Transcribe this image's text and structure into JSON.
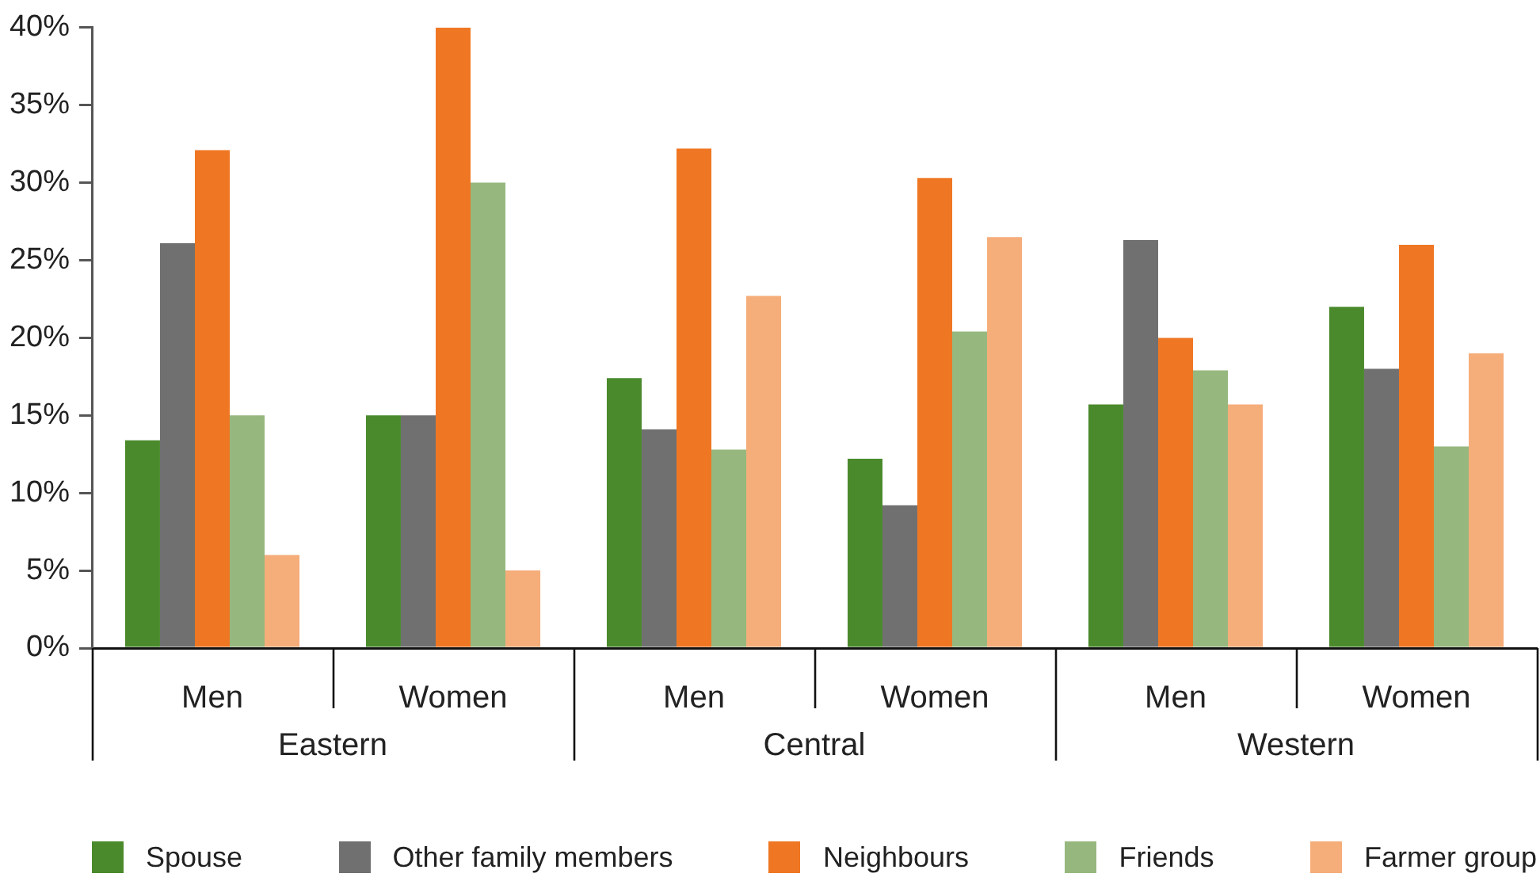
{
  "chart_data": {
    "type": "bar",
    "categories": [
      "Men",
      "Women",
      "Men",
      "Women",
      "Men",
      "Women"
    ],
    "series": [
      {
        "name": "Spouse",
        "color": "#4a8a2c",
        "values": [
          13.4,
          15,
          17.4,
          12.2,
          15.7,
          22
        ]
      },
      {
        "name": "Other family members",
        "color": "#707070",
        "values": [
          26.1,
          15,
          14.1,
          9.2,
          26.3,
          18
        ]
      },
      {
        "name": "Neighbours",
        "color": "#ef7723",
        "values": [
          32.1,
          40,
          32.2,
          30.3,
          20,
          26
        ]
      },
      {
        "name": "Friends",
        "color": "#96b87e",
        "values": [
          15,
          30,
          12.8,
          20.4,
          17.9,
          13
        ]
      },
      {
        "name": "Farmer group",
        "color": "#f5ad7a",
        "values": [
          6,
          5,
          22.7,
          26.5,
          15.7,
          19
        ]
      }
    ],
    "ylim": [
      0,
      40
    ],
    "yticks": [
      {
        "value": 0,
        "label": "0%"
      },
      {
        "value": 5,
        "label": "5%"
      },
      {
        "value": 10,
        "label": "10%"
      },
      {
        "value": 15,
        "label": "15%"
      },
      {
        "value": 20,
        "label": "20%"
      },
      {
        "value": 25,
        "label": "25%"
      },
      {
        "value": 30,
        "label": "30%"
      },
      {
        "value": 35,
        "label": "35%"
      },
      {
        "value": 40,
        "label": "40%"
      }
    ],
    "annotations": [
      "Eastern",
      "Central",
      "Western"
    ],
    "grid": false,
    "legend": "bottom"
  }
}
